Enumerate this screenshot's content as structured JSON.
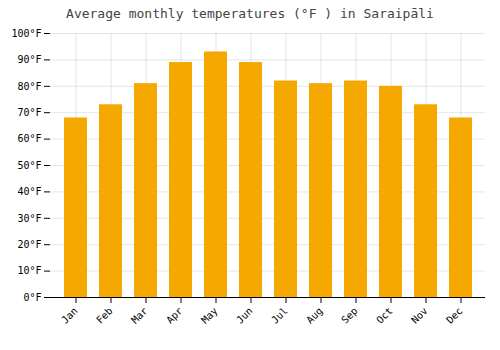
{
  "chart_data": {
    "type": "bar",
    "title": "Average monthly temperatures (°F ) in Saraipāli",
    "categories": [
      "Jan",
      "Feb",
      "Mar",
      "Apr",
      "May",
      "Jun",
      "Jul",
      "Aug",
      "Sep",
      "Oct",
      "Nov",
      "Dec"
    ],
    "values": [
      68,
      73,
      81,
      89,
      93,
      89,
      82,
      81,
      82,
      80,
      73,
      68
    ],
    "color": "#F5A800",
    "ylim": [
      0,
      100
    ],
    "yticks": [
      {
        "value": 0,
        "label": "0°F"
      },
      {
        "value": 10,
        "label": "10°F"
      },
      {
        "value": 20,
        "label": "20°F"
      },
      {
        "value": 30,
        "label": "30°F"
      },
      {
        "value": 40,
        "label": "40°F"
      },
      {
        "value": 50,
        "label": "50°F"
      },
      {
        "value": 60,
        "label": "60°F"
      },
      {
        "value": 70,
        "label": "70°F"
      },
      {
        "value": 80,
        "label": "80°F"
      },
      {
        "value": 90,
        "label": "90°F"
      },
      {
        "value": 100,
        "label": "100°F"
      }
    ],
    "grid": true
  }
}
